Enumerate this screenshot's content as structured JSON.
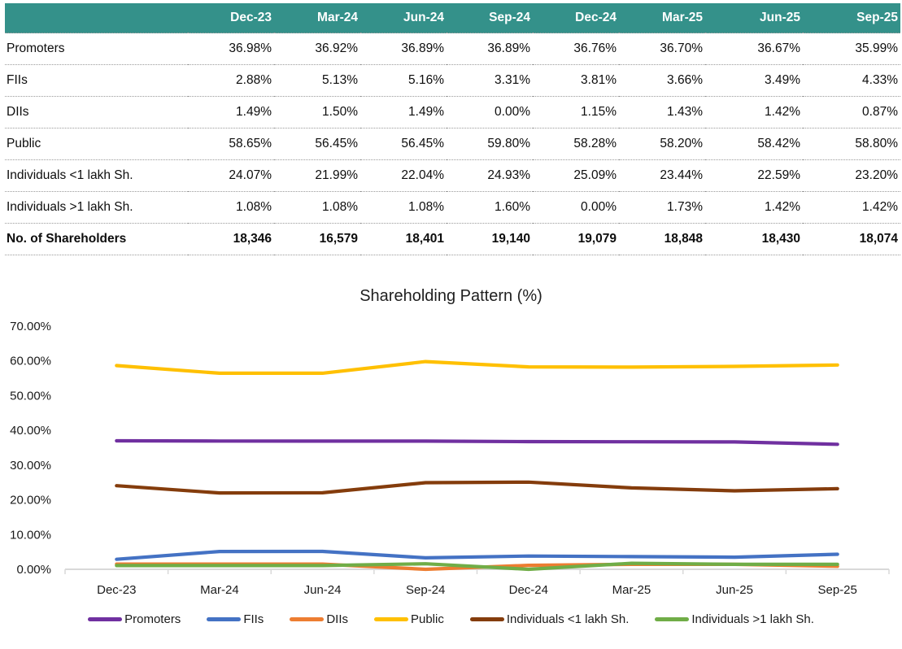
{
  "table": {
    "header_bg": "#34918A",
    "corner_label": "",
    "columns": [
      "Dec-23",
      "Mar-24",
      "Jun-24",
      "Sep-24",
      "Dec-24",
      "Mar-25",
      "Jun-25",
      "Sep-25"
    ],
    "rows": [
      {
        "label": "Promoters",
        "bold": false,
        "values": [
          "36.98%",
          "36.92%",
          "36.89%",
          "36.89%",
          "36.76%",
          "36.70%",
          "36.67%",
          "35.99%"
        ]
      },
      {
        "label": "FIIs",
        "bold": false,
        "values": [
          "2.88%",
          "5.13%",
          "5.16%",
          "3.31%",
          "3.81%",
          "3.66%",
          "3.49%",
          "4.33%"
        ]
      },
      {
        "label": "DIIs",
        "bold": false,
        "values": [
          "1.49%",
          "1.50%",
          "1.49%",
          "0.00%",
          "1.15%",
          "1.43%",
          "1.42%",
          "0.87%"
        ]
      },
      {
        "label": "Public",
        "bold": false,
        "values": [
          "58.65%",
          "56.45%",
          "56.45%",
          "59.80%",
          "58.28%",
          "58.20%",
          "58.42%",
          "58.80%"
        ]
      },
      {
        "label": "Individuals <1 lakh Sh.",
        "bold": false,
        "values": [
          "24.07%",
          "21.99%",
          "22.04%",
          "24.93%",
          "25.09%",
          "23.44%",
          "22.59%",
          "23.20%"
        ]
      },
      {
        "label": "Individuals >1 lakh Sh.",
        "bold": false,
        "values": [
          "1.08%",
          "1.08%",
          "1.08%",
          "1.60%",
          "0.00%",
          "1.73%",
          "1.42%",
          "1.42%"
        ]
      },
      {
        "label": "No. of Shareholders",
        "bold": true,
        "values": [
          "18,346",
          "16,579",
          "18,401",
          "19,140",
          "19,079",
          "18,848",
          "18,430",
          "18,074"
        ]
      }
    ]
  },
  "chart_data": {
    "type": "line",
    "title": "Shareholding Pattern (%)",
    "categories": [
      "Dec-23",
      "Mar-24",
      "Jun-24",
      "Sep-24",
      "Dec-24",
      "Mar-25",
      "Jun-25",
      "Sep-25"
    ],
    "series": [
      {
        "name": "Promoters",
        "color": "#7030A0",
        "values": [
          36.98,
          36.92,
          36.89,
          36.89,
          36.76,
          36.7,
          36.67,
          35.99
        ]
      },
      {
        "name": "FIIs",
        "color": "#4472C4",
        "values": [
          2.88,
          5.13,
          5.16,
          3.31,
          3.81,
          3.66,
          3.49,
          4.33
        ]
      },
      {
        "name": "DIIs",
        "color": "#ED7D31",
        "values": [
          1.49,
          1.5,
          1.49,
          0.0,
          1.15,
          1.43,
          1.42,
          0.87
        ]
      },
      {
        "name": "Public",
        "color": "#FFC000",
        "values": [
          58.65,
          56.45,
          56.45,
          59.8,
          58.28,
          58.2,
          58.42,
          58.8
        ]
      },
      {
        "name": "Individuals <1 lakh Sh.",
        "color": "#843C0C",
        "values": [
          24.07,
          21.99,
          22.04,
          24.93,
          25.09,
          23.44,
          22.59,
          23.2
        ]
      },
      {
        "name": "Individuals >1 lakh Sh.",
        "color": "#70AD47",
        "values": [
          1.08,
          1.08,
          1.08,
          1.6,
          0.0,
          1.73,
          1.42,
          1.42
        ]
      }
    ],
    "ylim": [
      0,
      70
    ],
    "ytick_step": 10,
    "ytick_labels": [
      "0.00%",
      "10.00%",
      "20.00%",
      "30.00%",
      "40.00%",
      "50.00%",
      "60.00%",
      "70.00%"
    ],
    "grid": false,
    "legend_position": "bottom",
    "axis_color": "#D9D9D9"
  }
}
